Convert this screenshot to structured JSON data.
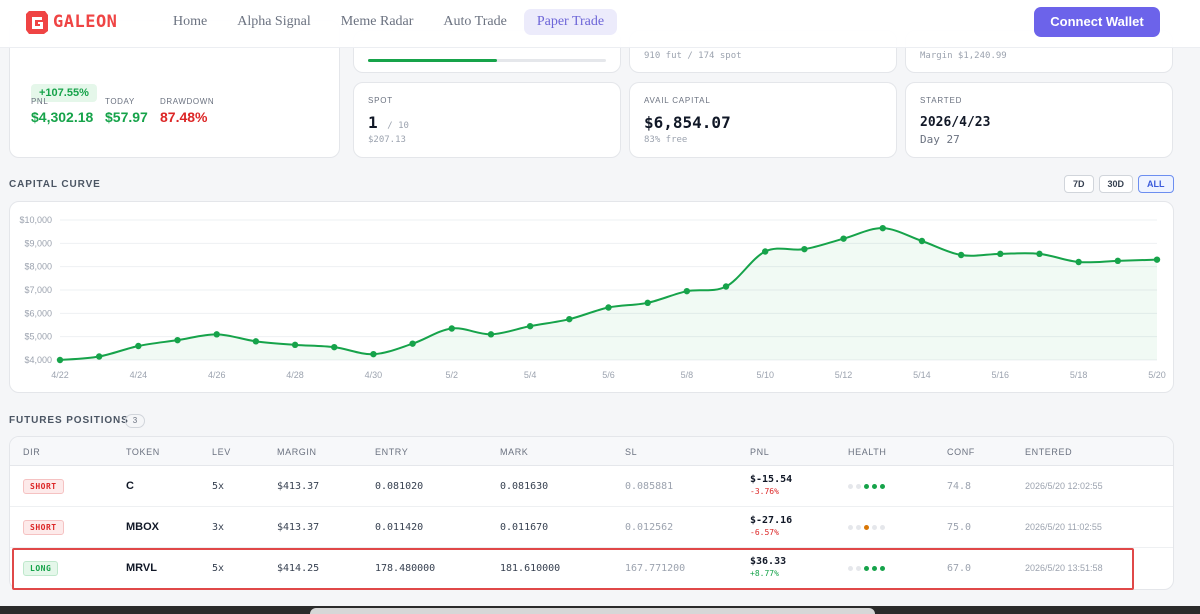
{
  "header": {
    "logo_text": "GALEON",
    "nav": [
      "Home",
      "Alpha Signal",
      "Meme Radar",
      "Auto Trade",
      "Paper Trade"
    ],
    "active_nav": "Paper Trade",
    "connect_label": "Connect Wallet"
  },
  "summary": {
    "equity_change": "+107.55%",
    "pnl_label": "PNL",
    "pnl_value": "$4,302.18",
    "today_label": "TODAY",
    "today_value": "$57.97",
    "drawdown_label": "DRAWDOWN",
    "drawdown_value": "87.48%"
  },
  "cards": {
    "positions_sub": "910 fut / 174 spot",
    "margin_sub": "Margin $1,240.99",
    "progress_fraction": 0.54,
    "spot_label": "SPOT",
    "spot_value": "1",
    "spot_max": "/ 10",
    "spot_sub": "$207.13",
    "avail_label": "AVAIL CAPITAL",
    "avail_value": "$6,854.07",
    "avail_sub": "83% free",
    "started_label": "STARTED",
    "started_value": "2026/4/23",
    "started_sub": "Day 27"
  },
  "capital_curve": {
    "title": "CAPITAL CURVE",
    "ranges": [
      "7D",
      "30D",
      "ALL"
    ],
    "active_range": "ALL"
  },
  "chart_data": {
    "type": "area",
    "x": [
      "4/22",
      "4/23",
      "4/24",
      "4/25",
      "4/26",
      "4/27",
      "4/28",
      "4/29",
      "4/30",
      "5/1",
      "5/2",
      "5/3",
      "5/4",
      "5/5",
      "5/6",
      "5/7",
      "5/8",
      "5/9",
      "5/10",
      "5/11",
      "5/12",
      "5/13",
      "5/14",
      "5/15",
      "5/16",
      "5/17",
      "5/18",
      "5/19",
      "5/20"
    ],
    "y": [
      4000,
      4150,
      4600,
      4850,
      5100,
      4800,
      4650,
      4550,
      4250,
      4700,
      5350,
      5100,
      5450,
      5750,
      6250,
      6450,
      6950,
      7150,
      8650,
      8750,
      9200,
      9650,
      9100,
      8500,
      8550,
      8550,
      8200,
      8250,
      8300
    ],
    "x_tick_labels": [
      "4/22",
      "4/24",
      "4/26",
      "4/28",
      "4/30",
      "5/2",
      "5/4",
      "5/6",
      "5/8",
      "5/10",
      "5/12",
      "5/14",
      "5/16",
      "5/18",
      "5/20"
    ],
    "y_tick_labels": [
      "$10,000",
      "$9,000",
      "$8,000",
      "$7,000",
      "$6,000",
      "$5,000",
      "$4,000"
    ],
    "ylim": [
      4000,
      10000
    ],
    "grid": true,
    "color": "#16a34a"
  },
  "positions": {
    "title": "FUTURES POSITIONS",
    "count": "3",
    "columns": [
      "DIR",
      "TOKEN",
      "LEV",
      "MARGIN",
      "ENTRY",
      "MARK",
      "SL",
      "PNL",
      "HEALTH",
      "CONF",
      "ENTERED"
    ],
    "rows": [
      {
        "dir": "SHORT",
        "token": "C",
        "lev": "5x",
        "margin": "$413.37",
        "entry": "0.081020",
        "mark": "0.081630",
        "sl": "0.085881",
        "pnl": "$-15.54",
        "pnl_pct": "-3.76%",
        "health": [
          "e",
          "e",
          "g",
          "g",
          "g"
        ],
        "conf": "74.8",
        "entered": "2026/5/20 12:02:55"
      },
      {
        "dir": "SHORT",
        "token": "MBOX",
        "lev": "3x",
        "margin": "$413.37",
        "entry": "0.011420",
        "mark": "0.011670",
        "sl": "0.012562",
        "pnl": "$-27.16",
        "pnl_pct": "-6.57%",
        "health": [
          "e",
          "e",
          "y",
          "e",
          "e"
        ],
        "conf": "75.0",
        "entered": "2026/5/20 11:02:55"
      },
      {
        "dir": "LONG",
        "token": "MRVL",
        "lev": "5x",
        "margin": "$414.25",
        "entry": "178.480000",
        "mark": "181.610000",
        "sl": "167.771200",
        "pnl": "$36.33",
        "pnl_pct": "+8.77%",
        "health": [
          "e",
          "e",
          "g",
          "g",
          "g"
        ],
        "conf": "67.0",
        "entered": "2026/5/20 13:51:58"
      }
    ]
  }
}
